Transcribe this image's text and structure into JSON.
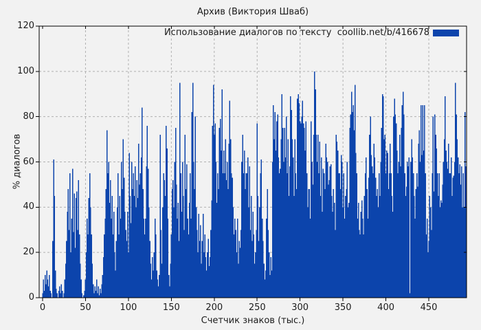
{
  "chart_data": {
    "type": "bar",
    "title": "Архив (Виктория Шваб)",
    "legend_label": "Использование диалогов по тексту  coollib.net/b/416678",
    "xlabel": "Счетчик знаков (тыс.)",
    "ylabel": "% диалогов",
    "xlim": [
      -4,
      494
    ],
    "ylim": [
      0,
      120
    ],
    "xtick_step": 50,
    "ytick_step": 20,
    "grid": true,
    "legend_position": "top-right-inside",
    "bar_color": "#0c44ac",
    "background_color": "#f2f2f2",
    "grid_color": "#b0b0b0",
    "border_color": "#000000",
    "values": [
      2,
      8,
      3,
      10,
      6,
      12,
      8,
      5,
      10,
      3,
      2,
      0,
      25,
      61,
      45,
      12,
      4,
      2,
      0,
      3,
      5,
      2,
      6,
      3,
      0,
      2,
      8,
      15,
      25,
      38,
      48,
      30,
      55,
      20,
      35,
      57,
      29,
      46,
      22,
      44,
      47,
      30,
      52,
      28,
      15,
      8,
      2,
      0,
      1,
      3,
      8,
      20,
      35,
      28,
      44,
      55,
      40,
      28,
      15,
      6,
      2,
      5,
      3,
      8,
      2,
      5,
      1,
      4,
      2,
      6,
      10,
      18,
      28,
      35,
      48,
      74,
      55,
      60,
      42,
      52,
      35,
      45,
      28,
      38,
      20,
      12,
      25,
      40,
      55,
      28,
      45,
      35,
      60,
      48,
      70,
      53,
      38,
      30,
      25,
      38,
      20,
      64,
      45,
      33,
      60,
      48,
      55,
      45,
      58,
      40,
      52,
      44,
      68,
      50,
      55,
      62,
      84,
      48,
      35,
      28,
      35,
      58,
      76,
      57,
      40,
      25,
      15,
      8,
      18,
      12,
      20,
      35,
      28,
      12,
      8,
      5,
      10,
      72,
      30,
      15,
      40,
      55,
      52,
      45,
      76,
      66,
      35,
      10,
      5,
      15,
      28,
      48,
      52,
      40,
      60,
      75,
      50,
      35,
      42,
      25,
      95,
      55,
      38,
      60,
      45,
      30,
      72,
      48,
      59,
      35,
      28,
      42,
      55,
      35,
      82,
      95,
      60,
      48,
      80,
      40,
      30,
      20,
      37,
      25,
      32,
      15,
      25,
      37,
      20,
      28,
      18,
      12,
      20,
      26,
      14,
      18,
      30,
      43,
      76,
      94,
      72,
      77,
      60,
      42,
      55,
      48,
      75,
      79,
      65,
      92,
      55,
      65,
      55,
      70,
      52,
      60,
      48,
      68,
      87,
      70,
      55,
      53,
      40,
      28,
      35,
      30,
      20,
      35,
      15,
      25,
      22,
      30,
      60,
      72,
      55,
      65,
      48,
      55,
      55,
      62,
      40,
      58,
      30,
      45,
      25,
      38,
      28,
      15,
      20,
      30,
      77,
      45,
      25,
      40,
      55,
      61,
      35,
      25,
      15,
      8,
      12,
      35,
      48,
      30,
      20,
      10,
      18,
      12,
      60,
      85,
      70,
      82,
      65,
      78,
      81,
      62,
      55,
      57,
      70,
      90,
      75,
      60,
      75,
      62,
      80,
      55,
      70,
      45,
      58,
      89,
      83,
      70,
      62,
      45,
      70,
      55,
      48,
      88,
      90,
      86,
      78,
      77,
      80,
      87,
      77,
      75,
      65,
      78,
      55,
      40,
      48,
      48,
      35,
      78,
      60,
      50,
      72,
      100,
      92,
      72,
      60,
      72,
      55,
      69,
      45,
      62,
      38,
      57,
      55,
      48,
      68,
      62,
      60,
      50,
      52,
      58,
      59,
      45,
      38,
      48,
      42,
      30,
      72,
      69,
      65,
      55,
      55,
      48,
      63,
      60,
      40,
      55,
      35,
      45,
      48,
      60,
      40,
      42,
      75,
      81,
      91,
      82,
      85,
      74,
      94,
      64,
      55,
      35,
      42,
      30,
      28,
      38,
      43,
      35,
      28,
      45,
      55,
      62,
      48,
      35,
      53,
      72,
      80,
      63,
      58,
      55,
      68,
      62,
      53,
      45,
      48,
      40,
      55,
      45,
      60,
      75,
      90,
      89,
      70,
      72,
      55,
      65,
      64,
      48,
      55,
      68,
      55,
      45,
      38,
      80,
      88,
      81,
      77,
      65,
      55,
      60,
      72,
      58,
      75,
      85,
      91,
      81,
      55,
      45,
      49,
      60,
      58,
      62,
      2,
      60,
      70,
      62,
      55,
      45,
      35,
      48,
      55,
      49,
      68,
      74,
      60,
      85,
      63,
      85,
      65,
      85,
      55,
      28,
      35,
      20,
      25,
      45,
      40,
      30,
      55,
      80,
      47,
      81,
      72,
      66,
      55,
      45,
      55,
      40,
      43,
      42,
      50,
      60,
      70,
      89,
      65,
      60,
      57,
      68,
      55,
      55,
      62,
      45,
      53,
      54,
      60,
      95,
      81,
      70,
      62,
      55,
      59,
      50,
      58,
      40,
      55,
      40,
      82,
      58
    ]
  }
}
